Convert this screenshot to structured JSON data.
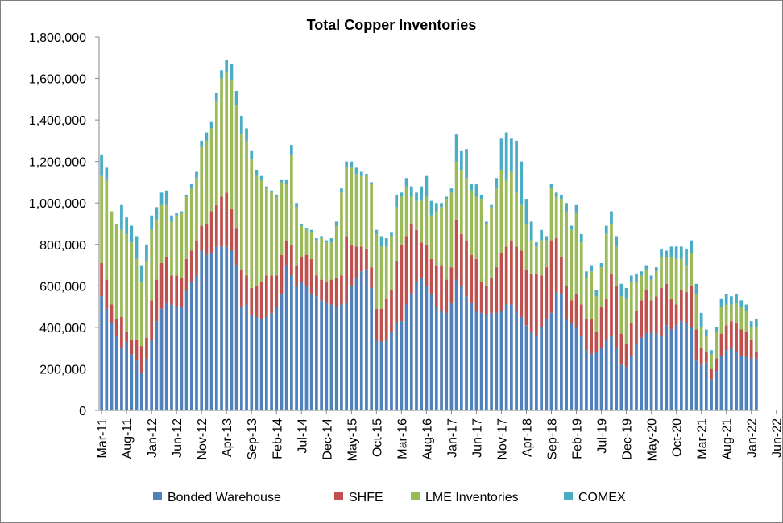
{
  "chart_data": {
    "type": "bar",
    "stacked": true,
    "title": "Total Copper Inventories",
    "xlabel": "",
    "ylabel": "",
    "ylim": [
      0,
      1800000
    ],
    "yticks": [
      0,
      200000,
      400000,
      600000,
      800000,
      1000000,
      1200000,
      1400000,
      1600000,
      1800000
    ],
    "ytick_labels": [
      "0",
      "200,000",
      "400,000",
      "600,000",
      "800,000",
      "1,000,000",
      "1,200,000",
      "1,400,000",
      "1,600,000",
      "1,800,000"
    ],
    "xtick_labels": [
      "Mar-11",
      "Aug-11",
      "Jan-12",
      "Jun-12",
      "Nov-12",
      "Apr-13",
      "Sep-13",
      "Feb-14",
      "Jul-14",
      "Dec-14",
      "May-15",
      "Oct-15",
      "Mar-16",
      "Aug-16",
      "Jan-17",
      "Jun-17",
      "Nov-17",
      "Apr-18",
      "Sep-18",
      "Feb-19",
      "Jul-19",
      "Dec-19",
      "May-20",
      "Oct-20",
      "Mar-21",
      "Aug-21",
      "Jan-22",
      "Jun-22"
    ],
    "grid": false,
    "legend_position": "bottom",
    "series": [
      {
        "name": "Bonded Warehouse",
        "color": "#4f81bd"
      },
      {
        "name": "SHFE",
        "color": "#c0504d"
      },
      {
        "name": "LME Inventories",
        "color": "#9bbb59"
      },
      {
        "name": "COMEX",
        "color": "#4bacc6"
      }
    ],
    "bars": [
      [
        550000,
        160000,
        420000,
        100000
      ],
      [
        490000,
        140000,
        480000,
        60000
      ],
      [
        420000,
        90000,
        450000,
        0
      ],
      [
        360000,
        80000,
        460000,
        0
      ],
      [
        300000,
        150000,
        420000,
        120000
      ],
      [
        330000,
        50000,
        470000,
        80000
      ],
      [
        270000,
        70000,
        470000,
        80000
      ],
      [
        240000,
        100000,
        390000,
        110000
      ],
      [
        180000,
        130000,
        310000,
        80000
      ],
      [
        250000,
        100000,
        370000,
        80000
      ],
      [
        340000,
        190000,
        340000,
        70000
      ],
      [
        430000,
        200000,
        290000,
        60000
      ],
      [
        490000,
        220000,
        280000,
        60000
      ],
      [
        520000,
        220000,
        250000,
        70000
      ],
      [
        510000,
        140000,
        260000,
        30000
      ],
      [
        500000,
        150000,
        290000,
        10000
      ],
      [
        500000,
        140000,
        310000,
        10000
      ],
      [
        580000,
        150000,
        300000,
        10000
      ],
      [
        620000,
        150000,
        300000,
        20000
      ],
      [
        650000,
        170000,
        300000,
        30000
      ],
      [
        770000,
        120000,
        380000,
        30000
      ],
      [
        750000,
        150000,
        400000,
        40000
      ],
      [
        760000,
        200000,
        400000,
        30000
      ],
      [
        790000,
        200000,
        500000,
        40000
      ],
      [
        790000,
        240000,
        570000,
        40000
      ],
      [
        790000,
        260000,
        580000,
        60000
      ],
      [
        770000,
        200000,
        620000,
        80000
      ],
      [
        700000,
        180000,
        590000,
        70000
      ],
      [
        500000,
        180000,
        650000,
        90000
      ],
      [
        510000,
        140000,
        650000,
        60000
      ],
      [
        460000,
        130000,
        620000,
        40000
      ],
      [
        450000,
        150000,
        530000,
        30000
      ],
      [
        440000,
        180000,
        490000,
        20000
      ],
      [
        450000,
        200000,
        420000,
        10000
      ],
      [
        470000,
        180000,
        400000,
        10000
      ],
      [
        500000,
        150000,
        380000,
        10000
      ],
      [
        560000,
        190000,
        350000,
        10000
      ],
      [
        700000,
        120000,
        270000,
        20000
      ],
      [
        650000,
        150000,
        430000,
        50000
      ],
      [
        600000,
        100000,
        280000,
        20000
      ],
      [
        620000,
        120000,
        150000,
        10000
      ],
      [
        600000,
        150000,
        120000,
        10000
      ],
      [
        560000,
        170000,
        130000,
        10000
      ],
      [
        550000,
        100000,
        170000,
        10000
      ],
      [
        530000,
        100000,
        200000,
        10000
      ],
      [
        520000,
        100000,
        190000,
        10000
      ],
      [
        510000,
        120000,
        180000,
        20000
      ],
      [
        500000,
        140000,
        250000,
        20000
      ],
      [
        510000,
        140000,
        400000,
        20000
      ],
      [
        520000,
        320000,
        330000,
        30000
      ],
      [
        600000,
        200000,
        370000,
        30000
      ],
      [
        640000,
        150000,
        350000,
        30000
      ],
      [
        670000,
        120000,
        340000,
        20000
      ],
      [
        680000,
        100000,
        350000,
        10000
      ],
      [
        590000,
        100000,
        400000,
        10000
      ],
      [
        340000,
        150000,
        360000,
        20000
      ],
      [
        330000,
        160000,
        300000,
        50000
      ],
      [
        340000,
        200000,
        250000,
        40000
      ],
      [
        380000,
        200000,
        260000,
        20000
      ],
      [
        420000,
        300000,
        260000,
        60000
      ],
      [
        430000,
        370000,
        230000,
        20000
      ],
      [
        510000,
        330000,
        240000,
        40000
      ],
      [
        560000,
        340000,
        130000,
        50000
      ],
      [
        620000,
        250000,
        140000,
        40000
      ],
      [
        640000,
        170000,
        200000,
        70000
      ],
      [
        600000,
        200000,
        230000,
        100000
      ],
      [
        560000,
        170000,
        210000,
        70000
      ],
      [
        500000,
        200000,
        260000,
        40000
      ],
      [
        480000,
        220000,
        280000,
        20000
      ],
      [
        470000,
        160000,
        390000,
        10000
      ],
      [
        520000,
        170000,
        360000,
        20000
      ],
      [
        630000,
        290000,
        280000,
        130000
      ],
      [
        600000,
        250000,
        310000,
        90000
      ],
      [
        550000,
        270000,
        300000,
        140000
      ],
      [
        520000,
        230000,
        310000,
        30000
      ],
      [
        480000,
        250000,
        300000,
        60000
      ],
      [
        470000,
        150000,
        400000,
        20000
      ],
      [
        460000,
        140000,
        300000,
        10000
      ],
      [
        470000,
        170000,
        340000,
        10000
      ],
      [
        470000,
        220000,
        380000,
        50000
      ],
      [
        480000,
        280000,
        400000,
        150000
      ],
      [
        510000,
        280000,
        320000,
        230000
      ],
      [
        510000,
        310000,
        330000,
        160000
      ],
      [
        480000,
        310000,
        260000,
        250000
      ],
      [
        450000,
        320000,
        220000,
        210000
      ],
      [
        410000,
        270000,
        220000,
        120000
      ],
      [
        380000,
        280000,
        160000,
        90000
      ],
      [
        360000,
        300000,
        130000,
        20000
      ],
      [
        400000,
        250000,
        170000,
        50000
      ],
      [
        440000,
        250000,
        130000,
        20000
      ],
      [
        470000,
        350000,
        250000,
        20000
      ],
      [
        570000,
        260000,
        200000,
        20000
      ],
      [
        560000,
        180000,
        280000,
        20000
      ],
      [
        440000,
        160000,
        360000,
        40000
      ],
      [
        420000,
        110000,
        340000,
        20000
      ],
      [
        400000,
        160000,
        390000,
        40000
      ],
      [
        360000,
        150000,
        300000,
        40000
      ],
      [
        290000,
        150000,
        200000,
        30000
      ],
      [
        270000,
        170000,
        230000,
        30000
      ],
      [
        280000,
        100000,
        170000,
        30000
      ],
      [
        300000,
        200000,
        190000,
        20000
      ],
      [
        340000,
        200000,
        310000,
        40000
      ],
      [
        360000,
        300000,
        240000,
        60000
      ],
      [
        300000,
        300000,
        190000,
        50000
      ],
      [
        220000,
        150000,
        180000,
        60000
      ],
      [
        210000,
        110000,
        220000,
        50000
      ],
      [
        260000,
        160000,
        200000,
        30000
      ],
      [
        320000,
        160000,
        140000,
        40000
      ],
      [
        350000,
        180000,
        120000,
        20000
      ],
      [
        370000,
        210000,
        100000,
        20000
      ],
      [
        380000,
        150000,
        100000,
        20000
      ],
      [
        370000,
        180000,
        120000,
        20000
      ],
      [
        360000,
        230000,
        150000,
        40000
      ],
      [
        410000,
        200000,
        130000,
        30000
      ],
      [
        390000,
        150000,
        200000,
        50000
      ],
      [
        410000,
        100000,
        220000,
        60000
      ],
      [
        430000,
        150000,
        150000,
        60000
      ],
      [
        420000,
        150000,
        130000,
        80000
      ],
      [
        400000,
        200000,
        160000,
        60000
      ],
      [
        240000,
        150000,
        170000,
        50000
      ],
      [
        220000,
        80000,
        100000,
        70000
      ],
      [
        230000,
        50000,
        80000,
        30000
      ],
      [
        150000,
        50000,
        70000,
        20000
      ],
      [
        190000,
        60000,
        130000,
        20000
      ],
      [
        260000,
        110000,
        130000,
        40000
      ],
      [
        290000,
        120000,
        100000,
        50000
      ],
      [
        300000,
        130000,
        80000,
        40000
      ],
      [
        280000,
        140000,
        100000,
        40000
      ],
      [
        260000,
        130000,
        110000,
        30000
      ],
      [
        260000,
        120000,
        100000,
        30000
      ],
      [
        250000,
        90000,
        60000,
        30000
      ],
      [
        250000,
        30000,
        120000,
        40000
      ]
    ]
  }
}
